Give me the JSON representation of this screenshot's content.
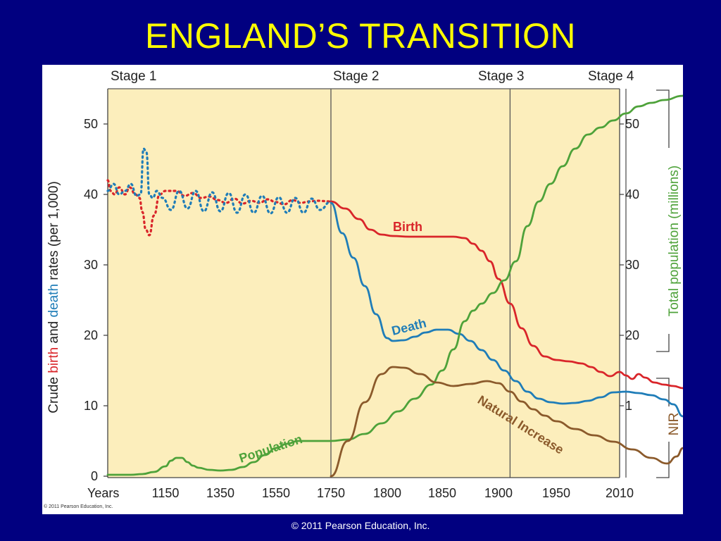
{
  "slide": {
    "title": "ENGLAND’S TRANSITION",
    "footer": "© 2011 Pearson Education, Inc."
  },
  "colors": {
    "background": "#010080",
    "title": "#FFFF00",
    "plot_area": "#FCEEBC",
    "birth": "#D9252A",
    "death": "#1F7DB8",
    "population": "#4EA23A",
    "natural_increase": "#8B5A2B"
  },
  "chart_data": {
    "type": "line",
    "stages": [
      "Stage 1",
      "Stage 2",
      "Stage 3",
      "Stage 4"
    ],
    "x_tick_labels": [
      "Years",
      "1150",
      "1350",
      "1550",
      "1750",
      "1800",
      "1850",
      "1900",
      "1950",
      "2010"
    ],
    "y_left_label_parts": [
      {
        "text": "Crude ",
        "color_key": "text"
      },
      {
        "text": "birth",
        "color_key": "birth"
      },
      {
        "text": " and ",
        "color_key": "text"
      },
      {
        "text": "death",
        "color_key": "death"
      },
      {
        "text": " rates (per 1,000)",
        "color_key": "text"
      }
    ],
    "y_left_ticks": [
      0,
      10,
      20,
      30,
      40,
      50
    ],
    "ylim": [
      0,
      56
    ],
    "y_right_ticks": [
      "50",
      "40",
      "30",
      "20",
      "1"
    ],
    "y_right_label_population": "Total population (millions)",
    "y_right_label_nir": "NIR",
    "series_labels": {
      "birth": "Birth",
      "death": "Death",
      "population": "Population",
      "natural_increase": "Natural Increase"
    },
    "series": [
      {
        "key": "birth",
        "style": "dotted",
        "x": [
          0,
          0.05,
          0.12,
          0.2,
          0.3,
          0.38,
          0.48,
          0.55,
          0.6,
          0.66,
          0.72,
          0.8,
          0.9,
          1.0,
          1.2,
          1.35,
          1.5,
          1.65,
          1.8,
          1.95,
          2.1,
          2.25,
          2.4,
          2.55,
          2.7,
          2.85,
          3.0,
          3.15,
          3.3,
          3.45,
          3.6,
          3.75,
          4.0
        ],
        "y": [
          42,
          40.5,
          40,
          41,
          40,
          41,
          40,
          39.5,
          37.5,
          35,
          34.2,
          37,
          40,
          40.5,
          40.5,
          39.8,
          40.2,
          39.5,
          39.7,
          39.2,
          38.8,
          39.4,
          38.7,
          39.1,
          38.8,
          39.3,
          38.9,
          38.6,
          39.2,
          38.8,
          39.0,
          39.1,
          39.0
        ]
      },
      {
        "key": "death",
        "style": "dotted",
        "x": [
          0,
          0.1,
          0.2,
          0.3,
          0.4,
          0.5,
          0.57,
          0.62,
          0.67,
          0.72,
          0.78,
          0.85,
          0.95,
          1.1,
          1.25,
          1.4,
          1.55,
          1.7,
          1.85,
          2.0,
          2.15,
          2.3,
          2.45,
          2.6,
          2.75,
          2.9,
          3.05,
          3.2,
          3.35,
          3.5,
          3.65,
          3.8,
          4.0
        ],
        "y": [
          40.5,
          41.5,
          40,
          40.5,
          41.5,
          39.8,
          40,
          46.5,
          46,
          40,
          39.5,
          40.5,
          39.5,
          37.8,
          40.5,
          38.0,
          40.5,
          37.6,
          40.3,
          37.6,
          40.2,
          37.4,
          40.0,
          37.4,
          39.8,
          37.3,
          39.6,
          37.4,
          39.5,
          37.4,
          39.4,
          37.8,
          39.0
        ]
      },
      {
        "key": "birth",
        "style": "solid",
        "x": [
          4.0,
          4.25,
          4.5,
          4.7,
          4.9,
          5.1,
          5.4,
          5.6,
          5.8,
          6.0,
          6.2,
          6.4,
          6.55,
          6.7,
          6.85,
          7.0,
          7.2,
          7.4,
          7.6,
          7.8,
          8.0,
          8.2,
          8.4,
          8.55,
          8.7,
          8.85,
          9.0,
          9.1,
          9.2,
          9.3,
          9.4,
          9.55,
          9.7,
          9.85,
          10.0
        ],
        "y": [
          39,
          38,
          36.5,
          35,
          34.3,
          34.1,
          34.0,
          34.0,
          34.0,
          34.0,
          34.0,
          33.8,
          33.0,
          32,
          30.5,
          28,
          24.5,
          21,
          18.5,
          17,
          16.5,
          16.3,
          16,
          15.5,
          14.8,
          14.2,
          14.8,
          14.3,
          13.8,
          14.5,
          14,
          13.3,
          13,
          12.8,
          12.5
        ]
      },
      {
        "key": "death",
        "style": "solid",
        "x": [
          4.0,
          4.2,
          4.4,
          4.6,
          4.8,
          5.0,
          5.1,
          5.3,
          5.5,
          5.7,
          5.9,
          6.1,
          6.3,
          6.5,
          6.7,
          6.9,
          7.1,
          7.3,
          7.5,
          7.7,
          7.9,
          8.1,
          8.3,
          8.5,
          8.7,
          8.9,
          9.1,
          9.3,
          9.5,
          9.7,
          9.85,
          10.0
        ],
        "y": [
          38.8,
          34.5,
          31,
          27,
          23,
          19.6,
          19.2,
          19.3,
          19.8,
          20.4,
          20.8,
          20.8,
          20.2,
          19.2,
          17.9,
          16.5,
          15,
          13.5,
          12,
          11,
          10.5,
          10.3,
          10.4,
          10.7,
          11.2,
          11.9,
          12.0,
          11.8,
          11.5,
          10.9,
          10.2,
          8.5
        ]
      },
      {
        "key": "population",
        "style": "solid",
        "x": [
          0,
          0.4,
          0.6,
          0.8,
          1.0,
          1.1,
          1.2,
          1.3,
          1.4,
          1.5,
          1.6,
          1.8,
          2.0,
          2.2,
          2.4,
          2.6,
          2.8,
          3.0,
          3.2,
          3.4,
          3.6,
          3.8,
          4.0,
          4.3,
          4.6,
          4.9,
          5.2,
          5.5,
          5.8,
          6.0,
          6.2,
          6.4,
          6.55,
          6.7,
          6.9,
          7.1,
          7.3,
          7.5,
          7.7,
          7.9,
          8.1,
          8.3,
          8.5,
          8.7,
          8.9,
          9.1,
          9.3,
          9.5,
          9.7,
          10.0
        ],
        "y": [
          0.2,
          0.2,
          0.3,
          0.6,
          1.4,
          2.2,
          2.6,
          2.6,
          2.0,
          1.5,
          1.2,
          0.9,
          0.8,
          0.9,
          1.3,
          2.0,
          3.0,
          4.0,
          4.6,
          5.0,
          5.0,
          5.0,
          5.0,
          5.2,
          6.0,
          7.5,
          9.2,
          11,
          13,
          15,
          18,
          22,
          23.5,
          24.5,
          26,
          27.8,
          30.5,
          35.5,
          39,
          41.5,
          44,
          46.5,
          48.5,
          49.5,
          50.5,
          51.5,
          52.5,
          53,
          53.4,
          54
        ]
      },
      {
        "key": "natural_increase",
        "style": "solid",
        "x": [
          4.0,
          4.3,
          4.6,
          4.9,
          5.1,
          5.3,
          5.6,
          5.9,
          6.2,
          6.5,
          6.8,
          7.0,
          7.2,
          7.4,
          7.6,
          7.8,
          8.0,
          8.3,
          8.6,
          8.9,
          9.2,
          9.5,
          9.75,
          9.9,
          10.0
        ],
        "y": [
          0,
          5,
          10.5,
          14.5,
          15.5,
          15.4,
          14.5,
          13.3,
          12.8,
          13.1,
          13.5,
          13.2,
          12,
          10.6,
          9.5,
          8.6,
          7.8,
          6.7,
          5.8,
          4.9,
          3.8,
          2.6,
          1.8,
          2.8,
          4.0
        ]
      }
    ]
  },
  "copyright_small": "© 2011 Pearson Education, Inc."
}
